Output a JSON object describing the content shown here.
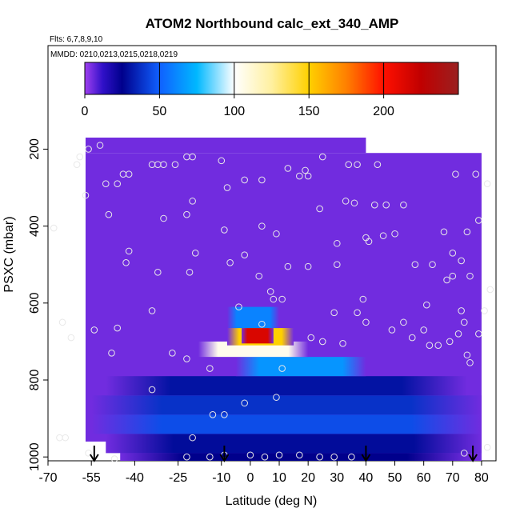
{
  "header": {
    "title": "ATOM2 Northbound calc_ext_340_AMP",
    "flights": "Flts: 6,7,8,9,10",
    "dates": "MMDD: 0210,0213,0215,0218,0219"
  },
  "colorbar": {
    "ticks": [
      "0",
      "50",
      "100",
      "150",
      "200"
    ],
    "tick_values": [
      0,
      50,
      100,
      150,
      200
    ],
    "range": [
      0,
      250
    ],
    "stops": [
      {
        "v": 0,
        "color": "#a040f0"
      },
      {
        "v": 12,
        "color": "#3010c8"
      },
      {
        "v": 25,
        "color": "#00008c"
      },
      {
        "v": 50,
        "color": "#1060ff"
      },
      {
        "v": 75,
        "color": "#00b8ff"
      },
      {
        "v": 100,
        "color": "#ffffff"
      },
      {
        "v": 125,
        "color": "#fff0a0"
      },
      {
        "v": 150,
        "color": "#ffd000"
      },
      {
        "v": 175,
        "color": "#ff8000"
      },
      {
        "v": 200,
        "color": "#ff1000"
      },
      {
        "v": 225,
        "color": "#c00000"
      },
      {
        "v": 250,
        "color": "#9a2020"
      }
    ]
  },
  "chart_data": {
    "type": "heatmap",
    "xlabel": "Latitude (deg N)",
    "ylabel": "PSXC (mbar)",
    "xlim": [
      -70,
      85
    ],
    "ylim": [
      1010,
      170
    ],
    "x_ticks": [
      "-70",
      "-55",
      "-40",
      "-25",
      "-10",
      "0",
      "10",
      "20",
      "30",
      "40",
      "50",
      "60",
      "70",
      "80"
    ],
    "x_tick_values": [
      -70,
      -55,
      -40,
      -25,
      -10,
      0,
      10,
      20,
      30,
      40,
      50,
      60,
      70,
      80
    ],
    "y_ticks": [
      "200",
      "400",
      "600",
      "800",
      "1000"
    ],
    "y_tick_values": [
      200,
      400,
      600,
      800,
      1000
    ],
    "color_range": [
      0,
      250
    ],
    "background_value": 5,
    "features": [
      {
        "lat": [
          -50,
          80
        ],
        "p": [
          940,
          990
        ],
        "value": 28
      },
      {
        "lat": [
          -55,
          80
        ],
        "p": [
          890,
          940
        ],
        "value": 45
      },
      {
        "lat": [
          -55,
          80
        ],
        "p": [
          840,
          890
        ],
        "value": 38
      },
      {
        "lat": [
          -50,
          75
        ],
        "p": [
          790,
          840
        ],
        "value": 30
      },
      {
        "lat": [
          -5,
          40
        ],
        "p": [
          740,
          790
        ],
        "value": 65
      },
      {
        "lat": [
          -18,
          20
        ],
        "p": [
          700,
          740
        ],
        "value": 105
      },
      {
        "lat": [
          -8,
          15
        ],
        "p": [
          665,
          710
        ],
        "value": 150
      },
      {
        "lat": [
          -3,
          8
        ],
        "p": [
          665,
          705
        ],
        "value": 215
      },
      {
        "lat": [
          -8,
          10
        ],
        "p": [
          610,
          665
        ],
        "value": 60
      },
      {
        "lat": [
          -45,
          76
        ],
        "p": [
          990,
          1010
        ],
        "value": 25
      }
    ],
    "data_gaps": [
      {
        "lat": [
          -70,
          -57
        ],
        "p": [
          170,
          1010
        ]
      },
      {
        "lat": [
          -57,
          -45
        ],
        "p": [
          960,
          1010
        ]
      },
      {
        "lat": [
          40,
          85
        ],
        "p": [
          170,
          210
        ]
      },
      {
        "lat": [
          80,
          85
        ],
        "p": [
          170,
          1010
        ]
      }
    ],
    "sample_points": [
      {
        "lat": -56,
        "p": 200
      },
      {
        "lat": -52,
        "p": 190
      },
      {
        "lat": -59,
        "p": 220
      },
      {
        "lat": -60,
        "p": 240
      },
      {
        "lat": -57,
        "p": 320
      },
      {
        "lat": -50,
        "p": 290
      },
      {
        "lat": -46,
        "p": 290
      },
      {
        "lat": -44,
        "p": 265
      },
      {
        "lat": -42,
        "p": 265
      },
      {
        "lat": -34,
        "p": 240
      },
      {
        "lat": -32,
        "p": 240
      },
      {
        "lat": -30,
        "p": 240
      },
      {
        "lat": -26,
        "p": 240
      },
      {
        "lat": -22,
        "p": 220
      },
      {
        "lat": -20,
        "p": 220
      },
      {
        "lat": -10,
        "p": 230
      },
      {
        "lat": -8,
        "p": 300
      },
      {
        "lat": -2,
        "p": 280
      },
      {
        "lat": 4,
        "p": 280
      },
      {
        "lat": 13,
        "p": 250
      },
      {
        "lat": 17,
        "p": 270
      },
      {
        "lat": 19,
        "p": 255
      },
      {
        "lat": 20,
        "p": 270
      },
      {
        "lat": 25,
        "p": 220
      },
      {
        "lat": 34,
        "p": 240
      },
      {
        "lat": 37,
        "p": 240
      },
      {
        "lat": 44,
        "p": 240
      },
      {
        "lat": -49,
        "p": 370
      },
      {
        "lat": -30,
        "p": 380
      },
      {
        "lat": -22,
        "p": 370
      },
      {
        "lat": -20,
        "p": 335
      },
      {
        "lat": -19,
        "p": 470
      },
      {
        "lat": -9,
        "p": 410
      },
      {
        "lat": 4,
        "p": 400
      },
      {
        "lat": 9,
        "p": 420
      },
      {
        "lat": 24,
        "p": 355
      },
      {
        "lat": 33,
        "p": 335
      },
      {
        "lat": 36,
        "p": 340
      },
      {
        "lat": 43,
        "p": 345
      },
      {
        "lat": 46,
        "p": 425
      },
      {
        "lat": 47,
        "p": 345
      },
      {
        "lat": 53,
        "p": 345
      },
      {
        "lat": 30,
        "p": 445
      },
      {
        "lat": 40,
        "p": 430
      },
      {
        "lat": 41,
        "p": 440
      },
      {
        "lat": 50,
        "p": 420
      },
      {
        "lat": -68,
        "p": 405
      },
      {
        "lat": 67,
        "p": 415
      },
      {
        "lat": 75,
        "p": 415
      },
      {
        "lat": 79,
        "p": 385
      },
      {
        "lat": 71,
        "p": 265
      },
      {
        "lat": 78,
        "p": 265
      },
      {
        "lat": 82,
        "p": 290
      },
      {
        "lat": -42,
        "p": 465
      },
      {
        "lat": -43,
        "p": 495
      },
      {
        "lat": -32,
        "p": 520
      },
      {
        "lat": -21,
        "p": 520
      },
      {
        "lat": -7,
        "p": 495
      },
      {
        "lat": -2,
        "p": 475
      },
      {
        "lat": 3,
        "p": 530
      },
      {
        "lat": 7,
        "p": 570
      },
      {
        "lat": 8,
        "p": 590
      },
      {
        "lat": 11,
        "p": 590
      },
      {
        "lat": 13,
        "p": 505
      },
      {
        "lat": 20,
        "p": 505
      },
      {
        "lat": 30,
        "p": 500
      },
      {
        "lat": 57,
        "p": 500
      },
      {
        "lat": 63,
        "p": 500
      },
      {
        "lat": 70,
        "p": 470
      },
      {
        "lat": 73,
        "p": 490
      },
      {
        "lat": 76,
        "p": 530
      },
      {
        "lat": 83,
        "p": 565
      },
      {
        "lat": 70,
        "p": 530
      },
      {
        "lat": 68,
        "p": 540
      },
      {
        "lat": 61,
        "p": 605
      },
      {
        "lat": 73,
        "p": 620
      },
      {
        "lat": 81,
        "p": 620
      },
      {
        "lat": -34,
        "p": 620
      },
      {
        "lat": -4,
        "p": 610
      },
      {
        "lat": 29,
        "p": 625
      },
      {
        "lat": 37,
        "p": 625
      },
      {
        "lat": 39,
        "p": 590
      },
      {
        "lat": 40,
        "p": 650
      },
      {
        "lat": 53,
        "p": 650
      },
      {
        "lat": 60,
        "p": 670
      },
      {
        "lat": 49,
        "p": 670
      },
      {
        "lat": 56,
        "p": 690
      },
      {
        "lat": 74,
        "p": 650
      },
      {
        "lat": 79,
        "p": 680
      },
      {
        "lat": 72,
        "p": 680
      },
      {
        "lat": 69,
        "p": 700
      },
      {
        "lat": 65,
        "p": 710
      },
      {
        "lat": 62,
        "p": 710
      },
      {
        "lat": -65,
        "p": 650
      },
      {
        "lat": -62,
        "p": 690
      },
      {
        "lat": -54,
        "p": 670
      },
      {
        "lat": -46,
        "p": 665
      },
      {
        "lat": -48,
        "p": 730
      },
      {
        "lat": -27,
        "p": 730
      },
      {
        "lat": 4,
        "p": 655
      },
      {
        "lat": 25,
        "p": 700
      },
      {
        "lat": 32,
        "p": 705
      },
      {
        "lat": 75,
        "p": 735
      },
      {
        "lat": 21,
        "p": 690
      },
      {
        "lat": -22,
        "p": 745
      },
      {
        "lat": 76,
        "p": 755
      },
      {
        "lat": 11,
        "p": 770
      },
      {
        "lat": -14,
        "p": 770
      },
      {
        "lat": -34,
        "p": 825
      },
      {
        "lat": 9,
        "p": 845
      },
      {
        "lat": -2,
        "p": 860
      },
      {
        "lat": -13,
        "p": 890
      },
      {
        "lat": -20,
        "p": 950
      },
      {
        "lat": -9,
        "p": 890
      },
      {
        "lat": -64,
        "p": 950
      },
      {
        "lat": -66,
        "p": 950
      },
      {
        "lat": -56,
        "p": 990
      },
      {
        "lat": -47,
        "p": 1005
      },
      {
        "lat": -22,
        "p": 1000
      },
      {
        "lat": -14,
        "p": 1000
      },
      {
        "lat": -9,
        "p": 995
      },
      {
        "lat": 0,
        "p": 995
      },
      {
        "lat": 5,
        "p": 1000
      },
      {
        "lat": 10,
        "p": 995
      },
      {
        "lat": 17,
        "p": 995
      },
      {
        "lat": 24,
        "p": 1000
      },
      {
        "lat": 29,
        "p": 1000
      },
      {
        "lat": 35,
        "p": 1000
      },
      {
        "lat": 74,
        "p": 990
      },
      {
        "lat": 82,
        "p": 975
      }
    ],
    "arrows_lat": [
      -54,
      -9,
      40,
      77
    ]
  }
}
